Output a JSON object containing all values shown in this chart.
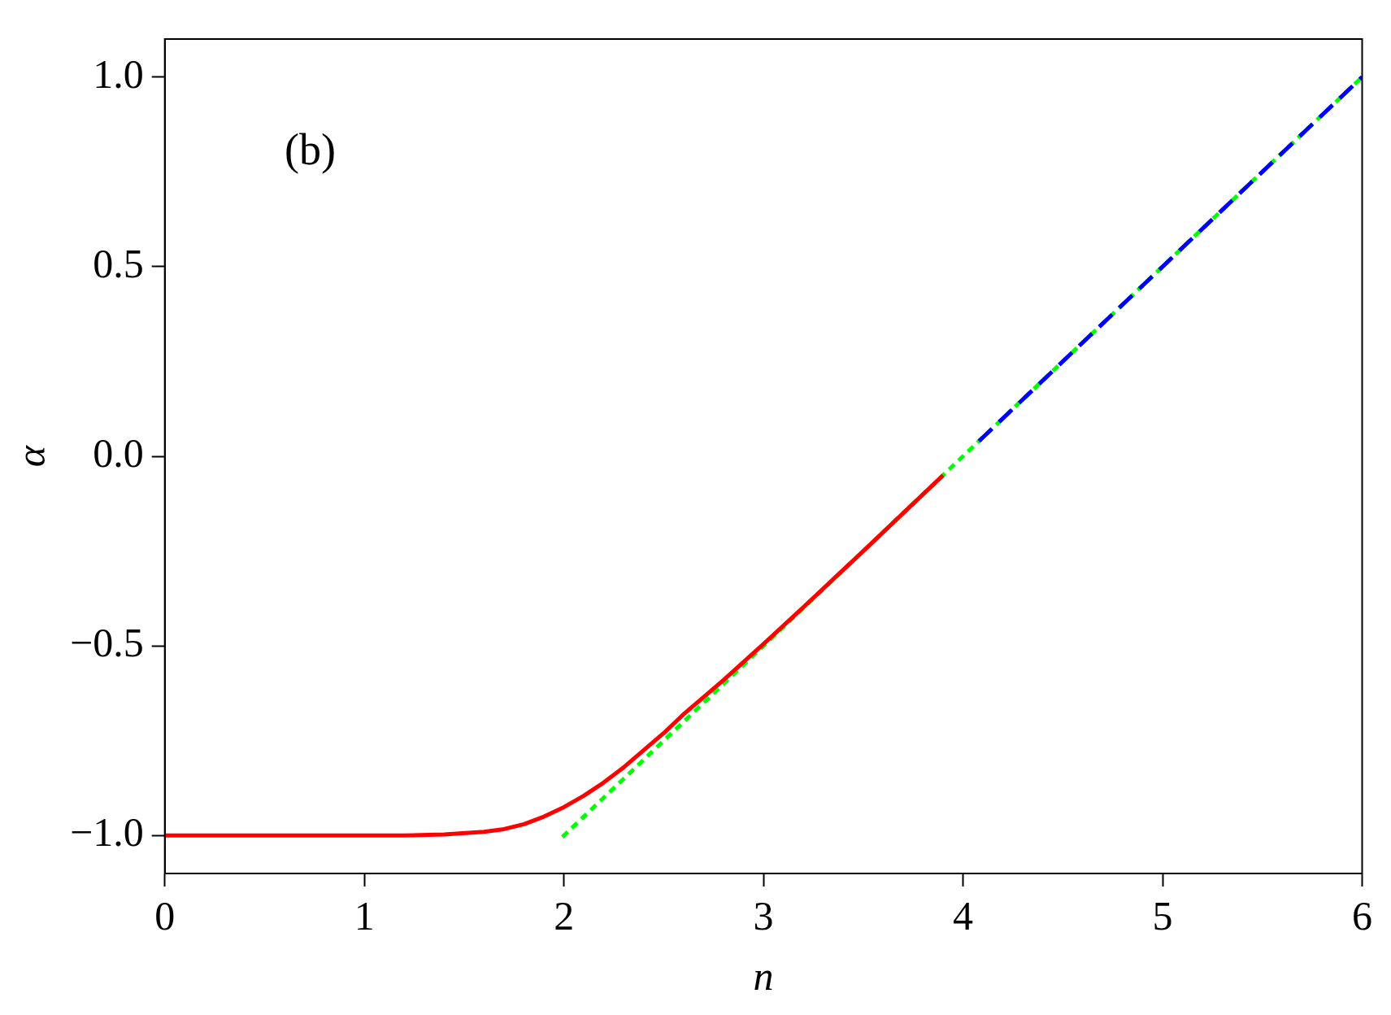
{
  "chart_data": {
    "type": "line",
    "xlabel": "n",
    "ylabel": "α",
    "annotations": [
      "(b)"
    ],
    "xlim": [
      0,
      6
    ],
    "ylim": [
      -1.1,
      1.1
    ],
    "xticks": [
      0,
      1,
      2,
      3,
      4,
      5,
      6
    ],
    "yticks": [
      {
        "value": -1,
        "label": "−1.0"
      },
      {
        "value": -0.5,
        "label": "−0.5"
      },
      {
        "value": 0,
        "label": "0.0"
      },
      {
        "value": 0.5,
        "label": "0.5"
      },
      {
        "value": 1,
        "label": "1.0"
      }
    ],
    "grid": false,
    "legend": false,
    "marker": "none",
    "series": [
      {
        "color": "#ff0000",
        "line_style": "solid",
        "x": [
          0,
          1.2,
          1.4,
          1.6,
          1.7,
          1.8,
          1.9,
          2.0,
          2.1,
          2.2,
          2.3,
          2.4,
          2.5,
          2.6,
          2.8,
          3.0,
          3.2,
          3.5,
          3.9
        ],
        "values": [
          -1,
          -1,
          -0.997,
          -0.99,
          -0.983,
          -0.97,
          -0.95,
          -0.925,
          -0.895,
          -0.86,
          -0.82,
          -0.775,
          -0.73,
          -0.68,
          -0.59,
          -0.495,
          -0.398,
          -0.25,
          -0.05
        ]
      },
      {
        "color": "#0000ff",
        "line_style": "dashed",
        "x": [
          4.08,
          6
        ],
        "values": [
          0.04,
          1
        ]
      },
      {
        "color": "#00ff00",
        "line_style": "dotted",
        "x": [
          2,
          6
        ],
        "values": [
          -1,
          1
        ]
      }
    ]
  }
}
